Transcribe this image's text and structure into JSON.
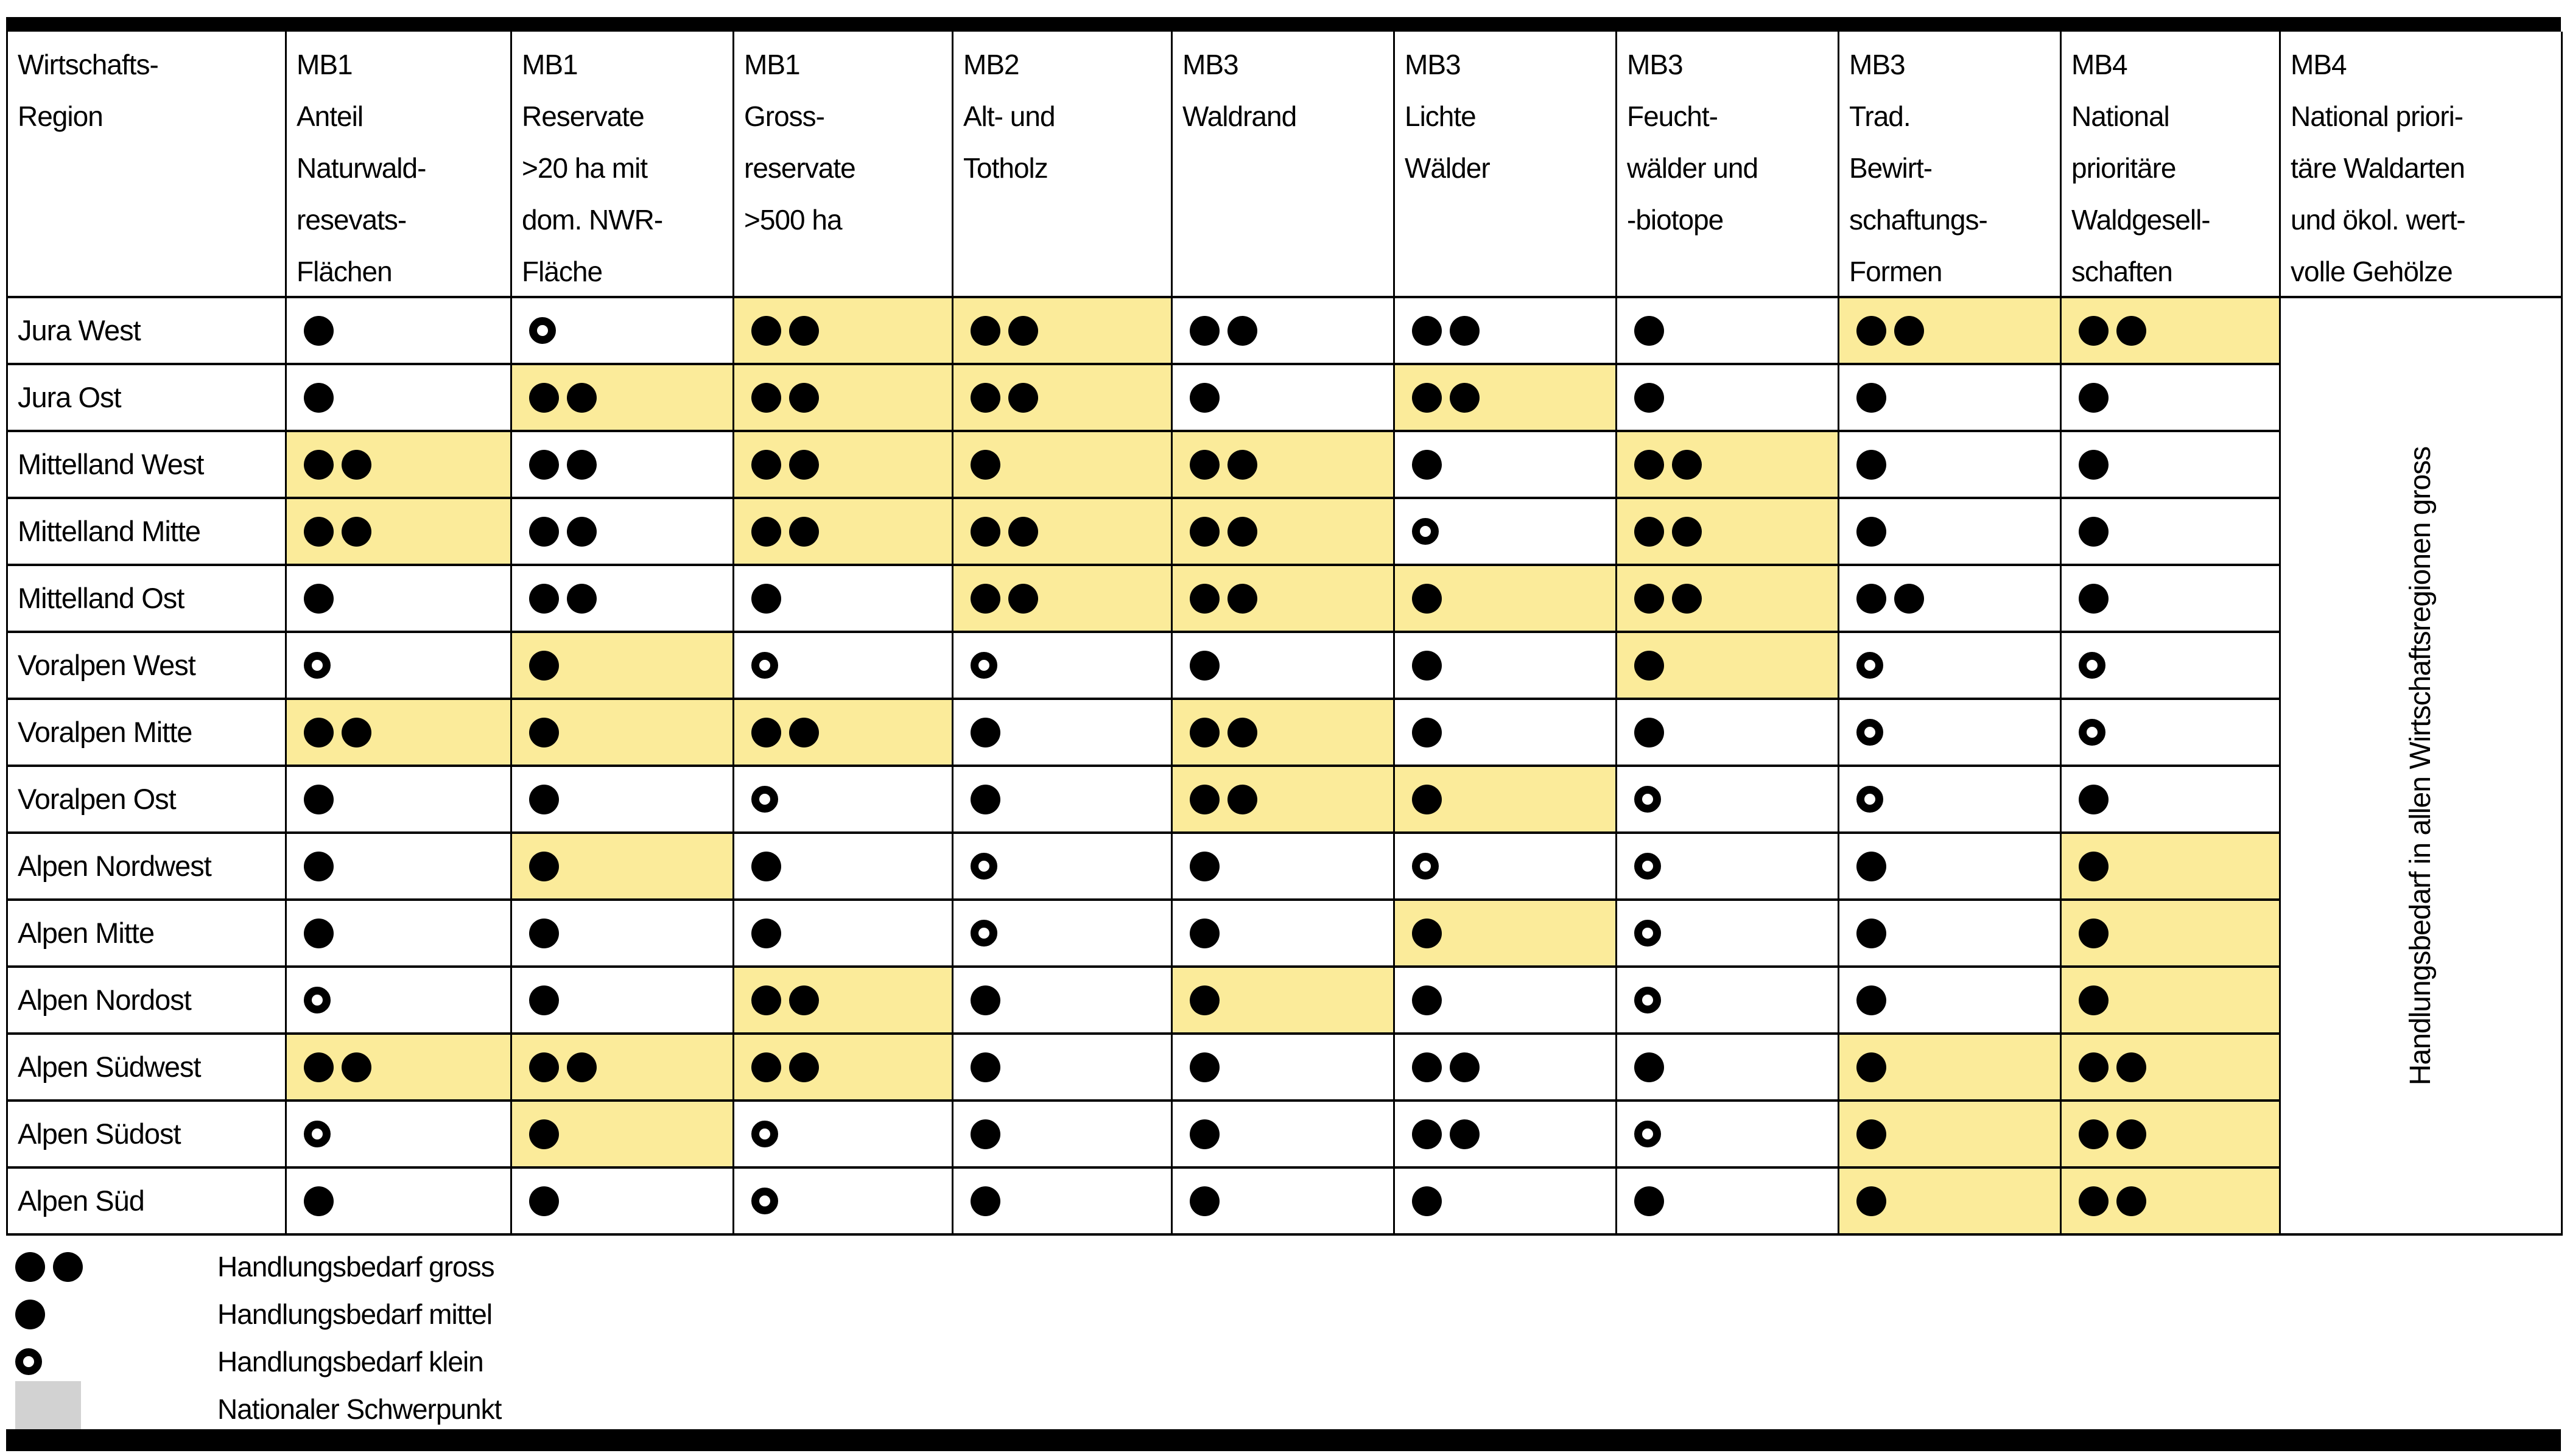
{
  "table": {
    "header": [
      {
        "lines": [
          "Wirtschafts-",
          "Region"
        ]
      },
      {
        "lines": [
          "MB1",
          "Anteil",
          "Naturwald-",
          "resevats-",
          "Flächen"
        ]
      },
      {
        "lines": [
          "MB1",
          "Reservate",
          ">20 ha mit",
          "dom. NWR-",
          "Fläche"
        ]
      },
      {
        "lines": [
          "MB1",
          "Gross-",
          "reservate",
          ">500 ha"
        ]
      },
      {
        "lines": [
          "MB2",
          "Alt- und",
          "Totholz"
        ]
      },
      {
        "lines": [
          "MB3",
          "Waldrand"
        ]
      },
      {
        "lines": [
          "MB3",
          "Lichte",
          "Wälder"
        ]
      },
      {
        "lines": [
          "MB3",
          "Feucht-",
          "wälder und",
          "-biotope"
        ]
      },
      {
        "lines": [
          "MB3",
          "Trad.",
          "Bewirt-",
          "schaftungs-",
          "Formen"
        ]
      },
      {
        "lines": [
          "MB4",
          "National",
          "prioritäre",
          "Waldgesell-",
          "schaften"
        ]
      },
      {
        "lines": [
          "MB4",
          "National priori-",
          "täre Waldarten",
          "und ökol. wert-",
          "volle Gehölze"
        ]
      }
    ],
    "merged_column_note": "Handlungsbedarf in allen Wirtschaftsregionen gross",
    "cell_format": "[dots, highlight] — dots: 2=Handlungsbedarf gross (two filled), 1=mittel (one filled), 0=klein (open circle); highlight: 1=Nationaler Schwerpunkt (yellow cell)",
    "rows": [
      {
        "region": "Jura West",
        "cells": [
          [
            1,
            0
          ],
          [
            0,
            0
          ],
          [
            2,
            1
          ],
          [
            2,
            1
          ],
          [
            2,
            0
          ],
          [
            2,
            0
          ],
          [
            1,
            0
          ],
          [
            2,
            1
          ],
          [
            2,
            1
          ]
        ]
      },
      {
        "region": "Jura Ost",
        "cells": [
          [
            1,
            0
          ],
          [
            2,
            1
          ],
          [
            2,
            1
          ],
          [
            2,
            1
          ],
          [
            1,
            0
          ],
          [
            2,
            1
          ],
          [
            1,
            0
          ],
          [
            1,
            0
          ],
          [
            1,
            0
          ]
        ]
      },
      {
        "region": "Mittelland West",
        "cells": [
          [
            2,
            1
          ],
          [
            2,
            0
          ],
          [
            2,
            1
          ],
          [
            1,
            1
          ],
          [
            2,
            1
          ],
          [
            1,
            0
          ],
          [
            2,
            1
          ],
          [
            1,
            0
          ],
          [
            1,
            0
          ]
        ]
      },
      {
        "region": "Mittelland Mitte",
        "cells": [
          [
            2,
            1
          ],
          [
            2,
            0
          ],
          [
            2,
            1
          ],
          [
            2,
            1
          ],
          [
            2,
            1
          ],
          [
            0,
            0
          ],
          [
            2,
            1
          ],
          [
            1,
            0
          ],
          [
            1,
            0
          ]
        ]
      },
      {
        "region": "Mittelland Ost",
        "cells": [
          [
            1,
            0
          ],
          [
            2,
            0
          ],
          [
            1,
            0
          ],
          [
            2,
            1
          ],
          [
            2,
            1
          ],
          [
            1,
            1
          ],
          [
            2,
            1
          ],
          [
            2,
            0
          ],
          [
            1,
            0
          ]
        ]
      },
      {
        "region": "Voralpen West",
        "cells": [
          [
            0,
            0
          ],
          [
            1,
            1
          ],
          [
            0,
            0
          ],
          [
            0,
            0
          ],
          [
            1,
            0
          ],
          [
            1,
            0
          ],
          [
            1,
            1
          ],
          [
            0,
            0
          ],
          [
            0,
            0
          ]
        ]
      },
      {
        "region": "Voralpen Mitte",
        "cells": [
          [
            2,
            1
          ],
          [
            1,
            1
          ],
          [
            2,
            1
          ],
          [
            1,
            0
          ],
          [
            2,
            1
          ],
          [
            1,
            0
          ],
          [
            1,
            0
          ],
          [
            0,
            0
          ],
          [
            0,
            0
          ]
        ]
      },
      {
        "region": "Voralpen Ost",
        "cells": [
          [
            1,
            0
          ],
          [
            1,
            0
          ],
          [
            0,
            0
          ],
          [
            1,
            0
          ],
          [
            2,
            1
          ],
          [
            1,
            1
          ],
          [
            0,
            0
          ],
          [
            0,
            0
          ],
          [
            1,
            0
          ]
        ]
      },
      {
        "region": "Alpen Nordwest",
        "cells": [
          [
            1,
            0
          ],
          [
            1,
            1
          ],
          [
            1,
            0
          ],
          [
            0,
            0
          ],
          [
            1,
            0
          ],
          [
            0,
            0
          ],
          [
            0,
            0
          ],
          [
            1,
            0
          ],
          [
            1,
            1
          ]
        ]
      },
      {
        "region": "Alpen Mitte",
        "cells": [
          [
            1,
            0
          ],
          [
            1,
            0
          ],
          [
            1,
            0
          ],
          [
            0,
            0
          ],
          [
            1,
            0
          ],
          [
            1,
            1
          ],
          [
            0,
            0
          ],
          [
            1,
            0
          ],
          [
            1,
            1
          ]
        ]
      },
      {
        "region": "Alpen Nordost",
        "cells": [
          [
            0,
            0
          ],
          [
            1,
            0
          ],
          [
            2,
            1
          ],
          [
            1,
            0
          ],
          [
            1,
            1
          ],
          [
            1,
            0
          ],
          [
            0,
            0
          ],
          [
            1,
            0
          ],
          [
            1,
            1
          ]
        ]
      },
      {
        "region": "Alpen Südwest",
        "cells": [
          [
            2,
            1
          ],
          [
            2,
            1
          ],
          [
            2,
            1
          ],
          [
            1,
            0
          ],
          [
            1,
            0
          ],
          [
            2,
            0
          ],
          [
            1,
            0
          ],
          [
            1,
            1
          ],
          [
            2,
            1
          ]
        ]
      },
      {
        "region": "Alpen Südost",
        "cells": [
          [
            0,
            0
          ],
          [
            1,
            1
          ],
          [
            0,
            0
          ],
          [
            1,
            0
          ],
          [
            1,
            0
          ],
          [
            2,
            0
          ],
          [
            0,
            0
          ],
          [
            1,
            1
          ],
          [
            2,
            1
          ]
        ]
      },
      {
        "region": "Alpen Süd",
        "cells": [
          [
            1,
            0
          ],
          [
            1,
            0
          ],
          [
            0,
            0
          ],
          [
            1,
            0
          ],
          [
            1,
            0
          ],
          [
            1,
            0
          ],
          [
            1,
            0
          ],
          [
            1,
            1
          ],
          [
            2,
            1
          ]
        ]
      }
    ]
  },
  "legend": {
    "items": [
      {
        "symbol": "double-filled-dot",
        "label": "Handlungsbedarf gross"
      },
      {
        "symbol": "single-filled-dot",
        "label": "Handlungsbedarf mittel"
      },
      {
        "symbol": "open-dot",
        "label": "Handlungsbedarf klein"
      },
      {
        "symbol": "gray-swatch",
        "label": "Nationaler Schwerpunkt"
      }
    ]
  },
  "colors": {
    "highlight": "#FBEB9A",
    "legend_swatch": "#D2D2D2",
    "bar": "#000000",
    "grid_line": "#000000"
  }
}
